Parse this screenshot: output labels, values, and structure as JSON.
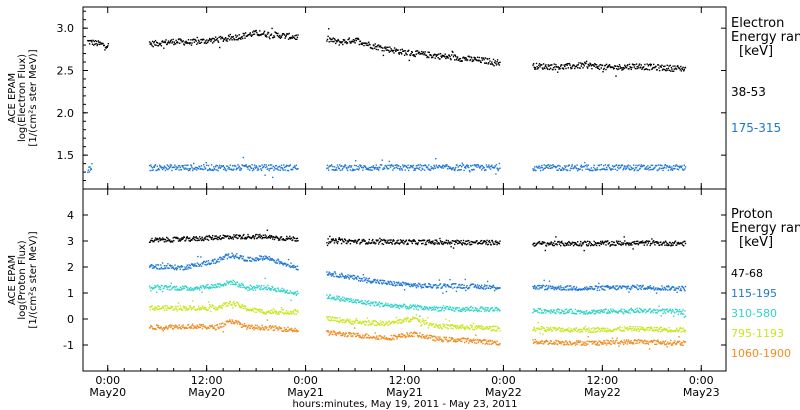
{
  "figure": {
    "xlabel": "hours:minutes, May 19, 2011 - May 23, 2011",
    "x_ticks": [
      {
        "top": "0:00",
        "bottom": "May20",
        "hour": 0
      },
      {
        "top": "12:00",
        "bottom": "May20",
        "hour": 12
      },
      {
        "top": "0:00",
        "bottom": "May21",
        "hour": 24
      },
      {
        "top": "12:00",
        "bottom": "May21",
        "hour": 36
      },
      {
        "top": "0:00",
        "bottom": "May22",
        "hour": 48
      },
      {
        "top": "12:00",
        "bottom": "May22",
        "hour": 60
      },
      {
        "top": "0:00",
        "bottom": "May23",
        "hour": 72
      }
    ]
  },
  "chart_data": [
    {
      "type": "scatter",
      "ylabel": [
        "ACE EPAM",
        "log(Electron Flux)",
        "[1/(cm²s ster MeV)]"
      ],
      "legend_title": [
        "Electron",
        "Energy ran",
        "[keV]"
      ],
      "ylim": [
        1.1,
        3.25
      ],
      "y_ticks": [
        1.5,
        2.0,
        2.5,
        3.0
      ],
      "xlim_hours": [
        -3,
        75
      ],
      "series": [
        {
          "name": "38-53",
          "color": "#000000",
          "segments": [
            {
              "x": [
                -2.5,
                0
              ],
              "y": [
                2.85,
                2.8
              ]
            },
            {
              "x": [
                5,
                8,
                10,
                12,
                14,
                16,
                18,
                20,
                23
              ],
              "y": [
                2.82,
                2.85,
                2.84,
                2.86,
                2.88,
                2.91,
                2.95,
                2.93,
                2.9
              ]
            },
            {
              "x": [
                26.5,
                28,
                30,
                32,
                34,
                36,
                38,
                40,
                42,
                44,
                46,
                47.5
              ],
              "y": [
                2.88,
                2.84,
                2.87,
                2.8,
                2.76,
                2.72,
                2.7,
                2.68,
                2.66,
                2.64,
                2.62,
                2.6
              ]
            },
            {
              "x": [
                51.5,
                55,
                58,
                61,
                64,
                67,
                70
              ],
              "y": [
                2.56,
                2.55,
                2.57,
                2.54,
                2.56,
                2.54,
                2.53
              ]
            }
          ]
        },
        {
          "name": "175-315",
          "color": "#1f77d4",
          "segments": [
            {
              "x": [
                -2.5,
                -2
              ],
              "y": [
                1.32,
                1.38
              ]
            },
            {
              "x": [
                5,
                23
              ],
              "y": [
                1.36,
                1.36
              ]
            },
            {
              "x": [
                26.5,
                47.5
              ],
              "y": [
                1.36,
                1.36
              ]
            },
            {
              "x": [
                51.5,
                70
              ],
              "y": [
                1.36,
                1.36
              ]
            }
          ]
        }
      ]
    },
    {
      "type": "scatter",
      "ylabel": [
        "ACE EPAM",
        "log(Proton Flux)",
        "[1/(cm²s ster MeV)]"
      ],
      "legend_title": [
        "Proton",
        "Energy ran",
        "[keV]"
      ],
      "ylim": [
        -2,
        5
      ],
      "y_ticks": [
        -1,
        0,
        1,
        2,
        3,
        4
      ],
      "xlim_hours": [
        -3,
        75
      ],
      "series": [
        {
          "name": "47-68",
          "color": "#000000",
          "segments": [
            {
              "x": [
                5,
                10,
                14,
                18,
                23
              ],
              "y": [
                3.05,
                3.1,
                3.18,
                3.2,
                3.1
              ]
            },
            {
              "x": [
                26.5,
                32,
                38,
                44,
                47.5
              ],
              "y": [
                3.02,
                3.0,
                2.98,
                2.97,
                2.96
              ]
            },
            {
              "x": [
                51.5,
                58,
                64,
                70
              ],
              "y": [
                2.92,
                2.93,
                2.95,
                2.93
              ]
            }
          ]
        },
        {
          "name": "115-195",
          "color": "#1f77d4",
          "segments": [
            {
              "x": [
                5,
                9,
                13,
                15,
                17,
                19,
                23
              ],
              "y": [
                2.05,
                2.0,
                2.25,
                2.5,
                2.3,
                2.4,
                2.0
              ]
            },
            {
              "x": [
                26.5,
                30,
                34,
                38,
                42,
                47.5
              ],
              "y": [
                1.8,
                1.6,
                1.4,
                1.3,
                1.3,
                1.25
              ]
            },
            {
              "x": [
                51.5,
                58,
                64,
                70
              ],
              "y": [
                1.25,
                1.2,
                1.25,
                1.2
              ]
            }
          ]
        },
        {
          "name": "310-580",
          "color": "#2fd3c8",
          "segments": [
            {
              "x": [
                5,
                10,
                13,
                15,
                17,
                19,
                23
              ],
              "y": [
                1.25,
                1.2,
                1.3,
                1.45,
                1.2,
                1.25,
                1.0
              ]
            },
            {
              "x": [
                26.5,
                30,
                34,
                38,
                42,
                47.5
              ],
              "y": [
                0.9,
                0.7,
                0.55,
                0.45,
                0.4,
                0.4
              ]
            },
            {
              "x": [
                51.5,
                58,
                64,
                70
              ],
              "y": [
                0.35,
                0.3,
                0.35,
                0.3
              ]
            }
          ]
        },
        {
          "name": "795-1193",
          "color": "#c8e61e",
          "segments": [
            {
              "x": [
                5,
                10,
                13,
                15,
                17,
                19,
                23
              ],
              "y": [
                0.45,
                0.45,
                0.45,
                0.65,
                0.4,
                0.3,
                0.3
              ]
            },
            {
              "x": [
                26.5,
                30,
                34,
                37,
                40,
                44,
                47.5
              ],
              "y": [
                0.05,
                -0.1,
                -0.15,
                0.05,
                -0.25,
                -0.3,
                -0.35
              ]
            },
            {
              "x": [
                51.5,
                58,
                64,
                70
              ],
              "y": [
                -0.35,
                -0.4,
                -0.35,
                -0.4
              ]
            }
          ]
        },
        {
          "name": "1060-1900",
          "color": "#f08c1e",
          "segments": [
            {
              "x": [
                5,
                10,
                13,
                15,
                17,
                19,
                23
              ],
              "y": [
                -0.3,
                -0.25,
                -0.3,
                -0.05,
                -0.3,
                -0.3,
                -0.4
              ]
            },
            {
              "x": [
                26.5,
                30,
                34,
                37,
                40,
                44,
                47.5
              ],
              "y": [
                -0.5,
                -0.6,
                -0.7,
                -0.55,
                -0.75,
                -0.8,
                -0.9
              ]
            },
            {
              "x": [
                51.5,
                58,
                64,
                70
              ],
              "y": [
                -0.85,
                -0.9,
                -0.85,
                -0.9
              ]
            }
          ]
        }
      ]
    }
  ]
}
